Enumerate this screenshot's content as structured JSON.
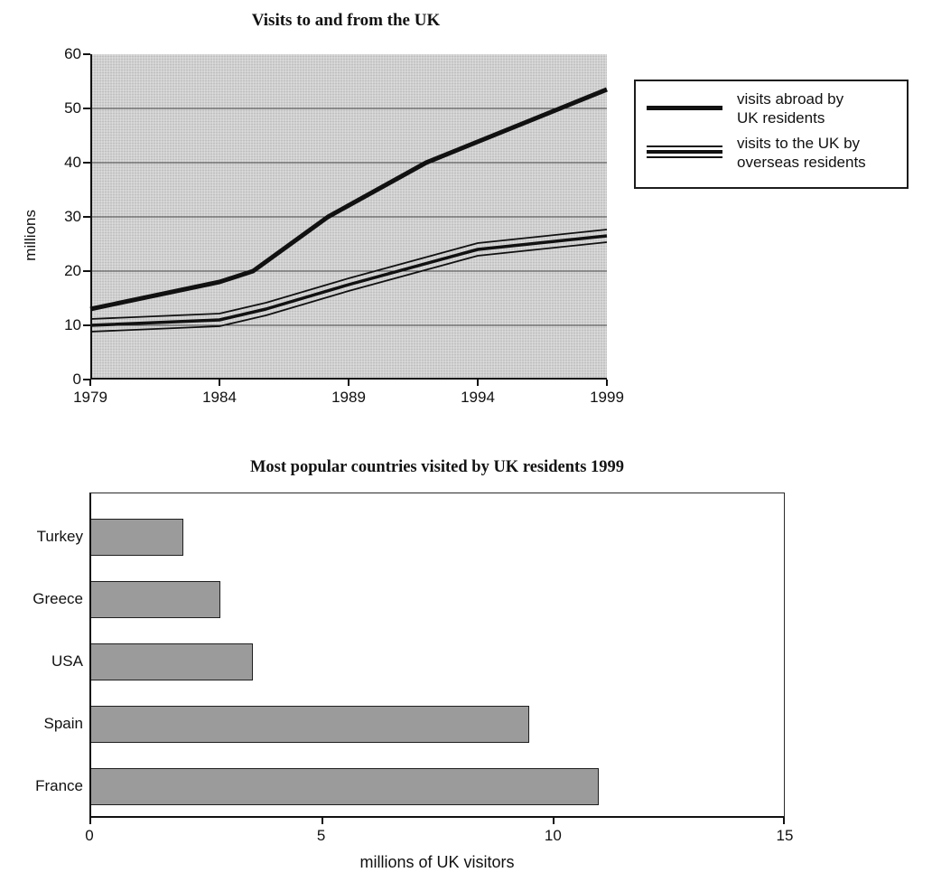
{
  "page": {
    "background": "#ffffff"
  },
  "chart_data": [
    {
      "type": "line",
      "title": "Visits to and from the UK",
      "ylabel": "millions",
      "xlabel": "",
      "xlim": [
        1979,
        1999
      ],
      "ylim": [
        0,
        60
      ],
      "x_ticks": [
        "1979",
        "1984",
        "1989",
        "1994",
        "1999"
      ],
      "y_ticks": [
        60,
        50,
        40,
        30,
        20,
        10,
        0
      ],
      "grid": true,
      "plot_bg": "#cfcfcf",
      "line_color": "#111111",
      "legend_position": "right",
      "legend": [
        {
          "line1": "visits abroad by",
          "line2": "UK residents",
          "style": "thick-single-line"
        },
        {
          "line1": "visits to the UK by",
          "line2": "overseas residents",
          "style": "triple-line"
        }
      ],
      "series": [
        {
          "name": "visits abroad by UK residents",
          "style": "thick-single",
          "points": [
            [
              1979,
              13
            ],
            [
              1984,
              18
            ],
            [
              1985.3,
              20
            ],
            [
              1988.2,
              30
            ],
            [
              1992,
              40
            ],
            [
              1999,
              53.5
            ]
          ]
        },
        {
          "name": "visits to the UK by overseas residents",
          "style": "triple-line",
          "points": [
            [
              1979,
              10
            ],
            [
              1984,
              11
            ],
            [
              1985.8,
              13
            ],
            [
              1989,
              17.5
            ],
            [
              1994,
              24
            ],
            [
              1999,
              26.5
            ]
          ]
        }
      ]
    },
    {
      "type": "bar",
      "orientation": "horizontal",
      "title": "Most popular countries visited by UK residents 1999",
      "xlabel": "millions of UK visitors",
      "ylabel": "",
      "categories": [
        "Turkey",
        "Greece",
        "USA",
        "Spain",
        "France"
      ],
      "values": [
        2,
        2.8,
        3.5,
        9.5,
        11
      ],
      "x_ticks": [
        0,
        5,
        10,
        15
      ],
      "xlim": [
        0,
        15
      ],
      "grid": false,
      "bar_color": "#9b9b9b"
    }
  ]
}
